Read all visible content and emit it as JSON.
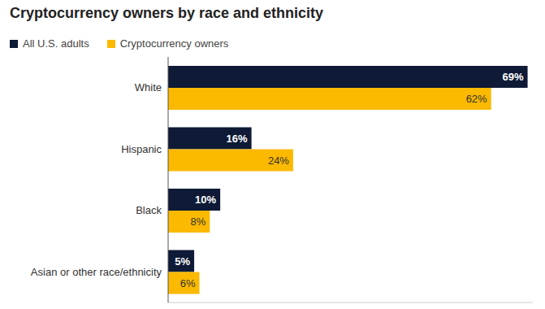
{
  "chart_data": {
    "type": "bar",
    "title": "Cryptocurrency owners by race and ethnicity",
    "orientation": "horizontal",
    "categories": [
      "White",
      "Hispanic",
      "Black",
      "Asian or other race/ethnicity"
    ],
    "series": [
      {
        "name": "All U.S. adults",
        "color": "#0e1a36",
        "values": [
          69,
          16,
          10,
          5
        ],
        "value_labels": [
          "69%",
          "16%",
          "10%",
          "5%"
        ]
      },
      {
        "name": "Cryptocurrency owners",
        "color": "#fbb900",
        "values": [
          62,
          24,
          8,
          6
        ],
        "value_labels": [
          "62%",
          "24%",
          "8%",
          "6%"
        ]
      }
    ],
    "xlim": [
      0,
      70
    ],
    "data_labels": true,
    "tick_labels": "y",
    "legend": "top"
  }
}
